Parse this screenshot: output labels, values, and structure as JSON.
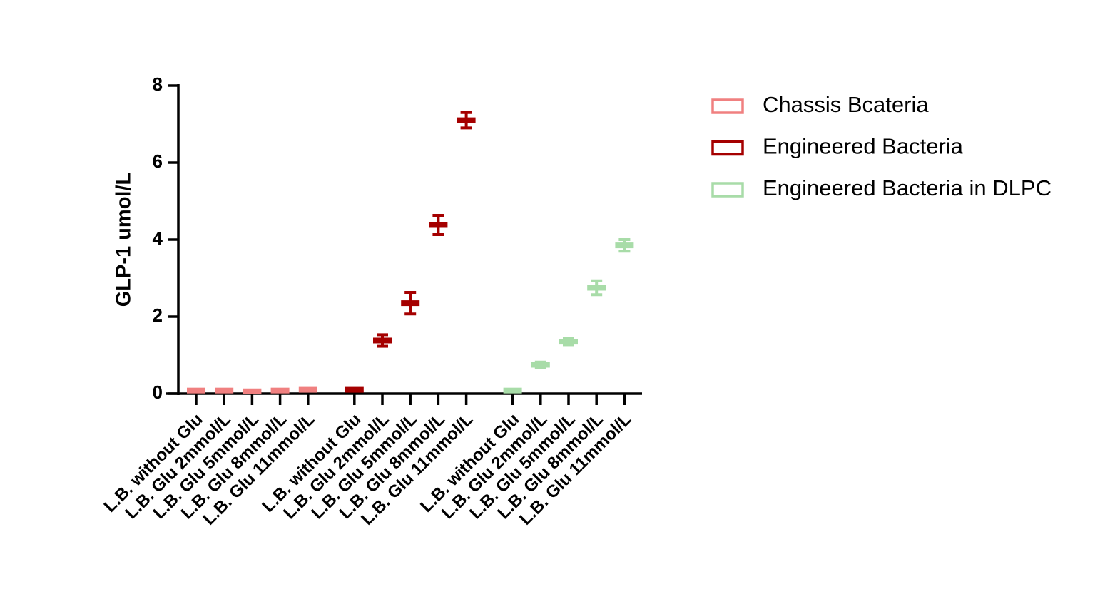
{
  "chart_data": {
    "type": "floating-bar",
    "ylabel": "GLP-1 umol/L",
    "categories": [
      "L.B. without Glu",
      "L.B. Glu 2mmol/L",
      "L.B. Glu 5mmol/L",
      "L.B. Glu 8mmol/L",
      "L.B. Glu 11mmol/L",
      "L.B. without Glu",
      "L.B. Glu 2mmol/L",
      "L.B. Glu 5mmol/L",
      "L.B. Glu 8mmol/L",
      "L.B. Glu 11mmol/L",
      "L.B. without Glu",
      "L.B. Glu 2mmol/L",
      "L.B. Glu 5mmol/L",
      "L.B. Glu 8mmol/L",
      "L.B. Glu 11mmol/L"
    ],
    "series": [
      {
        "name": "Chassis Bcateria",
        "color": "#f08080",
        "values": [
          0.08,
          0.08,
          0.06,
          0.08,
          0.1,
          null,
          null,
          null,
          null,
          null,
          null,
          null,
          null,
          null,
          null
        ],
        "errors": [
          null,
          null,
          null,
          null,
          null,
          null,
          null,
          null,
          null,
          null,
          null,
          null,
          null,
          null,
          null
        ]
      },
      {
        "name": "Engineered Bacteria",
        "color": "#a50000",
        "values": [
          null,
          null,
          null,
          null,
          null,
          0.1,
          1.38,
          2.35,
          4.38,
          7.1,
          null,
          null,
          null,
          null,
          null
        ],
        "errors": [
          null,
          null,
          null,
          null,
          null,
          null,
          0.15,
          0.28,
          0.25,
          0.2,
          null,
          null,
          null,
          null,
          null
        ]
      },
      {
        "name": "Engineered Bacteria in DLPC",
        "color": "#a8dca8",
        "values": [
          null,
          null,
          null,
          null,
          null,
          null,
          null,
          null,
          null,
          null,
          0.08,
          0.75,
          1.35,
          2.75,
          3.85
        ],
        "errors": [
          null,
          null,
          null,
          null,
          null,
          null,
          null,
          null,
          null,
          null,
          null,
          0.07,
          0.08,
          0.18,
          0.15
        ]
      }
    ],
    "ylim": [
      0,
      8
    ],
    "yticks": [
      0,
      2,
      4,
      6,
      8
    ],
    "legend": "right"
  }
}
